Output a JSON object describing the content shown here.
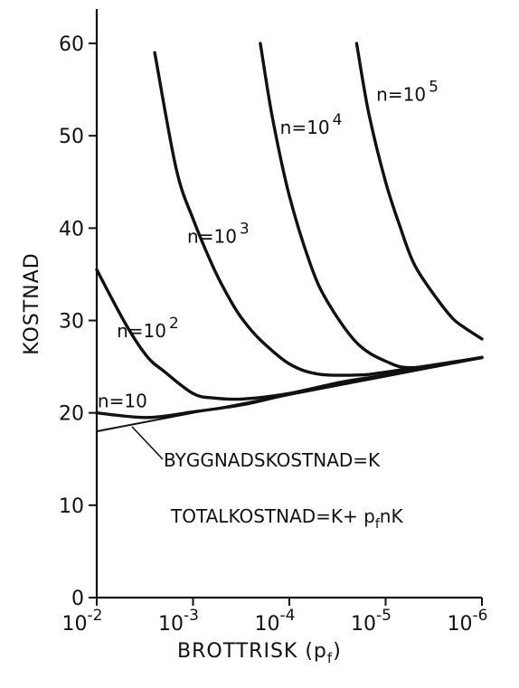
{
  "chart_data": {
    "type": "line",
    "xlabel": "BROTTRISK (p",
    "xlabel_sub": "f",
    "xlabel_close": ")",
    "ylabel": "KOSTNAD",
    "ylim": [
      0,
      60
    ],
    "xlim": [
      0.01,
      1e-06
    ],
    "x_scale": "log",
    "x_ticks": [
      {
        "value": 0.01,
        "base": "10",
        "exp": "-2"
      },
      {
        "value": 0.001,
        "base": "10",
        "exp": "-3"
      },
      {
        "value": 0.0001,
        "base": "10",
        "exp": "-4"
      },
      {
        "value": 1e-05,
        "base": "10",
        "exp": "-5"
      },
      {
        "value": 1e-06,
        "base": "10",
        "exp": "-6"
      }
    ],
    "y_ticks": [
      {
        "value": 0,
        "label": "0"
      },
      {
        "value": 10,
        "label": "10"
      },
      {
        "value": 20,
        "label": "20"
      },
      {
        "value": 30,
        "label": "30"
      },
      {
        "value": 40,
        "label": "40"
      },
      {
        "value": 50,
        "label": "50"
      },
      {
        "value": 60,
        "label": "60"
      }
    ],
    "series": [
      {
        "role": "construction-cost",
        "x": [
          0.01,
          0.001,
          0.0001,
          1e-05,
          1e-06
        ],
        "y": [
          18,
          20,
          22,
          24,
          26
        ]
      },
      {
        "role": "total-n-10",
        "x": [
          0.01,
          0.003,
          0.001,
          0.0003,
          0.0001,
          1e-05,
          1e-06
        ],
        "y": [
          20,
          19.5,
          20.1,
          20.9,
          22,
          24,
          26
        ]
      },
      {
        "role": "total-n-100",
        "x": [
          0.01,
          0.005,
          0.003,
          0.002,
          0.001,
          0.0006,
          0.0003,
          0.0001,
          3e-05,
          1e-05,
          1e-06
        ],
        "y": [
          35.5,
          29.6,
          26.1,
          24.5,
          22.1,
          21.6,
          21.5,
          22.1,
          23.3,
          24.1,
          26
        ]
      },
      {
        "role": "total-n-1000",
        "x": [
          0.0025,
          0.0015,
          0.001,
          0.0006,
          0.0004,
          0.0003,
          0.0002,
          0.0001,
          5e-05,
          2e-05,
          1e-05,
          1e-06
        ],
        "y": [
          59,
          46.5,
          41,
          35.5,
          32,
          30,
          27.9,
          25.3,
          24.2,
          24.1,
          24.4,
          26
        ]
      },
      {
        "role": "total-n-10000",
        "x": [
          0.0002,
          0.00015,
          0.0001,
          6e-05,
          4e-05,
          2e-05,
          1e-05,
          5e-06,
          1e-06
        ],
        "y": [
          60,
          52,
          43.5,
          36,
          32,
          27.6,
          25.6,
          24.9,
          26
        ]
      },
      {
        "role": "total-n-100000",
        "x": [
          2e-05,
          1.5e-05,
          1e-05,
          7e-06,
          5e-06,
          3e-06,
          2e-06,
          1.5e-06,
          1e-06
        ],
        "y": [
          60,
          52.5,
          45,
          40,
          36,
          32.5,
          30.2,
          29.2,
          28
        ]
      }
    ],
    "annotations": [
      {
        "id": "n10",
        "text": "n=10",
        "sup": "",
        "x": 0.0098,
        "y": 20.6
      },
      {
        "id": "n100",
        "text": "n=10",
        "sup": "2",
        "x": 0.0062,
        "y": 28.2
      },
      {
        "id": "n1000",
        "text": "n=10",
        "sup": "3",
        "x": 0.00115,
        "y": 38.4
      },
      {
        "id": "n10000",
        "text": "n=10",
        "sup": "4",
        "x": 0.000125,
        "y": 50.2
      },
      {
        "id": "n100000",
        "text": "n=10",
        "sup": "5",
        "x": 1.25e-05,
        "y": 53.8
      }
    ],
    "legend_texts": {
      "construction_label": "BYGGNADSKOSTNAD=K",
      "total_prefix": "TOTALKOSTNAD=K+ p",
      "total_sub": "f",
      "total_suffix": "nK"
    }
  }
}
